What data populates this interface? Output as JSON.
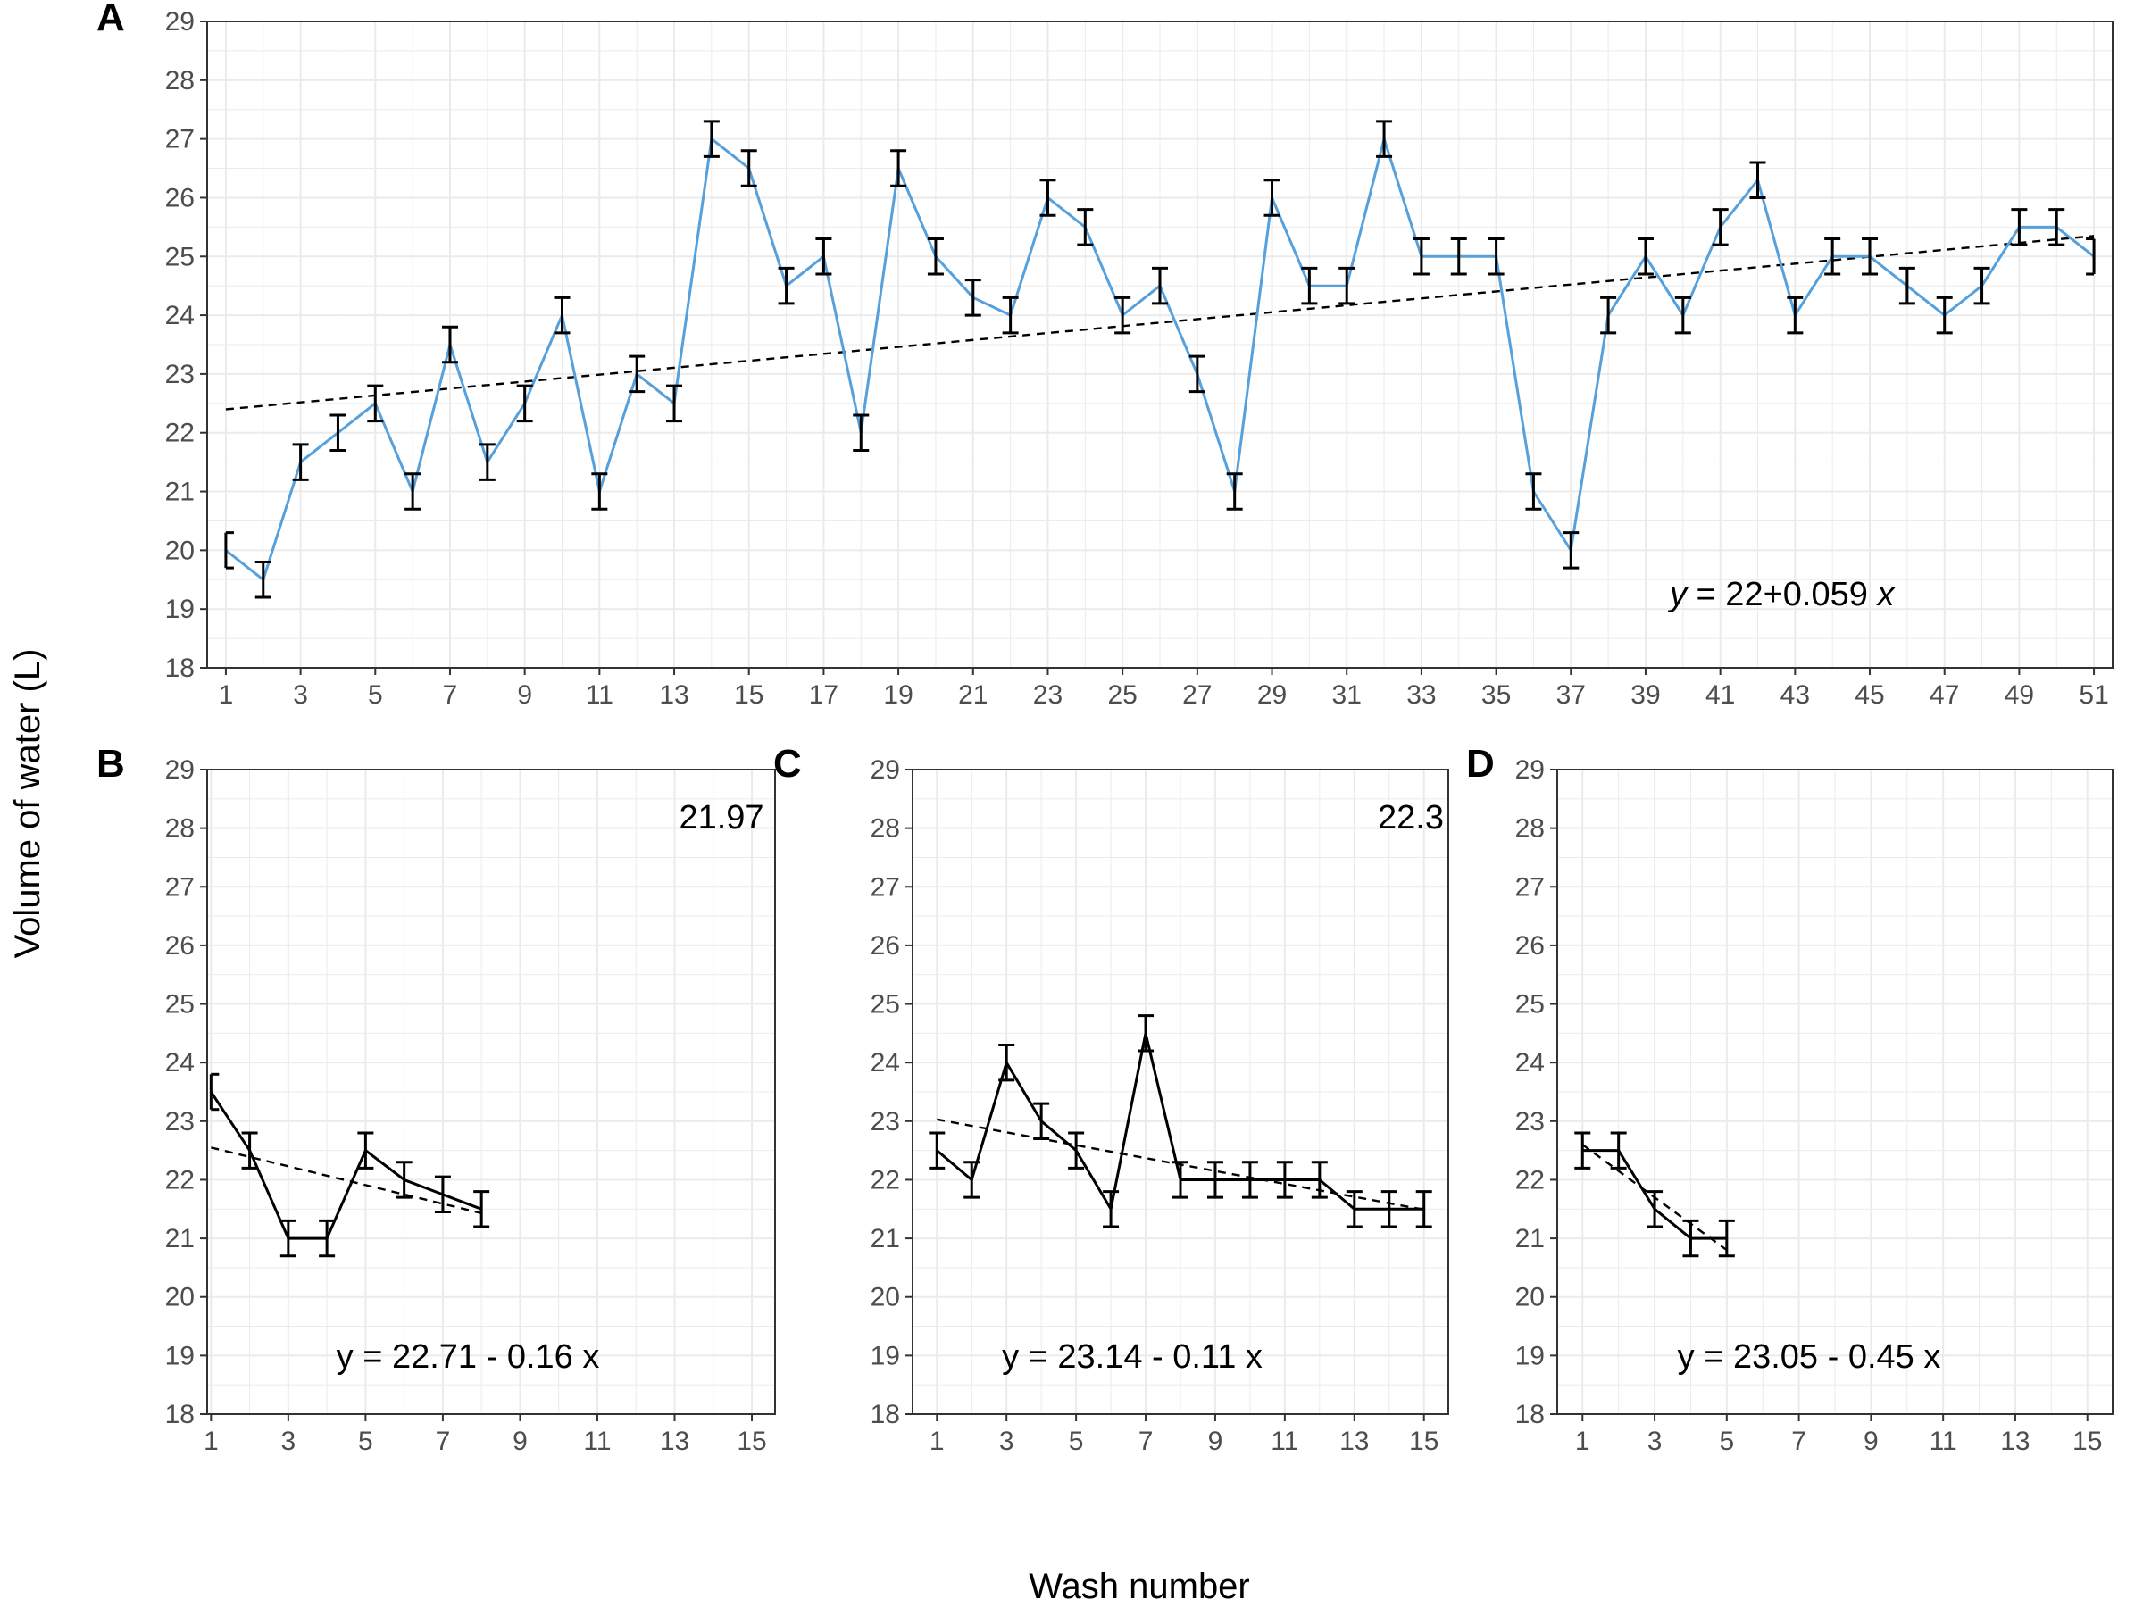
{
  "ylabel": "Volume of water (L)",
  "xlabel": "Wash number",
  "colors": {
    "series_A": "#56a0dc",
    "series_BCD": "#000000",
    "grid": "#ebebeb",
    "trend": "#000000"
  },
  "chart_data": [
    {
      "panel": "A",
      "type": "line",
      "x": [
        1,
        2,
        3,
        4,
        5,
        6,
        7,
        8,
        9,
        10,
        11,
        12,
        13,
        14,
        15,
        16,
        17,
        18,
        19,
        20,
        21,
        22,
        23,
        24,
        25,
        26,
        27,
        28,
        29,
        30,
        31,
        32,
        33,
        34,
        35,
        36,
        37,
        38,
        39,
        40,
        41,
        42,
        43,
        44,
        45,
        46,
        47,
        48,
        49,
        50,
        51
      ],
      "y": [
        20,
        19.5,
        21.5,
        22,
        22.5,
        21,
        23.5,
        21.5,
        22.5,
        24,
        21,
        23,
        22.5,
        27,
        26.5,
        24.5,
        25,
        22,
        26.5,
        25,
        24.3,
        24,
        26,
        25.5,
        24,
        24.5,
        23,
        21,
        26,
        24.5,
        24.5,
        27,
        25,
        25,
        25,
        21,
        20,
        24,
        25,
        24,
        25.5,
        26.3,
        24,
        25,
        25,
        24.5,
        24,
        24.5,
        25.5,
        25.5,
        25
      ],
      "error": 0.3,
      "trend": {
        "intercept": 22.34,
        "slope": 0.059
      },
      "equation": {
        "y": "y",
        "eq": " = 22",
        "plus": "+",
        "num": "0.059",
        "x": "x"
      },
      "xlim": [
        0.5,
        51.5
      ],
      "ylim": [
        18,
        29
      ],
      "xticks": [
        1,
        3,
        5,
        7,
        9,
        11,
        13,
        15,
        17,
        19,
        21,
        23,
        25,
        27,
        29,
        31,
        33,
        35,
        37,
        39,
        41,
        43,
        45,
        47,
        49,
        51
      ],
      "yticks": [
        18,
        19,
        20,
        21,
        22,
        23,
        24,
        25,
        26,
        27,
        28,
        29
      ]
    },
    {
      "panel": "B",
      "type": "line",
      "x": [
        1,
        2,
        3,
        4,
        5,
        6,
        7,
        8
      ],
      "y": [
        23.5,
        22.5,
        21,
        21,
        22.5,
        22,
        21.75,
        21.5
      ],
      "error": 0.3,
      "trend": {
        "intercept": 22.71,
        "slope": -0.16
      },
      "equation_text": "y = 22.71 - 0.16 x",
      "annotation": "21.97",
      "xlim": [
        0.9,
        15.6
      ],
      "ylim": [
        18,
        29
      ],
      "xticks": [
        1,
        3,
        5,
        7,
        9,
        11,
        13,
        15
      ],
      "yticks": [
        18,
        19,
        20,
        21,
        22,
        23,
        24,
        25,
        26,
        27,
        28,
        29
      ]
    },
    {
      "panel": "C",
      "type": "line",
      "x": [
        1,
        2,
        3,
        4,
        5,
        6,
        7,
        8,
        9,
        10,
        11,
        12,
        13,
        14,
        15
      ],
      "y": [
        22.5,
        22,
        24,
        23,
        22.5,
        21.5,
        24.5,
        22,
        22,
        22,
        22,
        22,
        21.5,
        21.5,
        21.5
      ],
      "error": 0.3,
      "trend": {
        "intercept": 23.14,
        "slope": -0.11
      },
      "equation_text": "y = 23.14 - 0.11 x",
      "annotation": "22.3",
      "xlim": [
        0.3,
        15.7
      ],
      "ylim": [
        18,
        29
      ],
      "xticks": [
        1,
        3,
        5,
        7,
        9,
        11,
        13,
        15
      ],
      "yticks": [
        18,
        19,
        20,
        21,
        22,
        23,
        24,
        25,
        26,
        27,
        28,
        29
      ]
    },
    {
      "panel": "D",
      "type": "line",
      "x": [
        1,
        2,
        3,
        4,
        5
      ],
      "y": [
        22.5,
        22.5,
        21.5,
        21,
        21
      ],
      "error": 0.3,
      "trend": {
        "intercept": 23.05,
        "slope": -0.45
      },
      "equation_text": "y = 23.05 - 0.45 x",
      "annotation": "",
      "xlim": [
        0.3,
        15.7
      ],
      "ylim": [
        18,
        29
      ],
      "xticks": [
        1,
        3,
        5,
        7,
        9,
        11,
        13,
        15
      ],
      "yticks": [
        18,
        19,
        20,
        21,
        22,
        23,
        24,
        25,
        26,
        27,
        28,
        29
      ]
    }
  ]
}
